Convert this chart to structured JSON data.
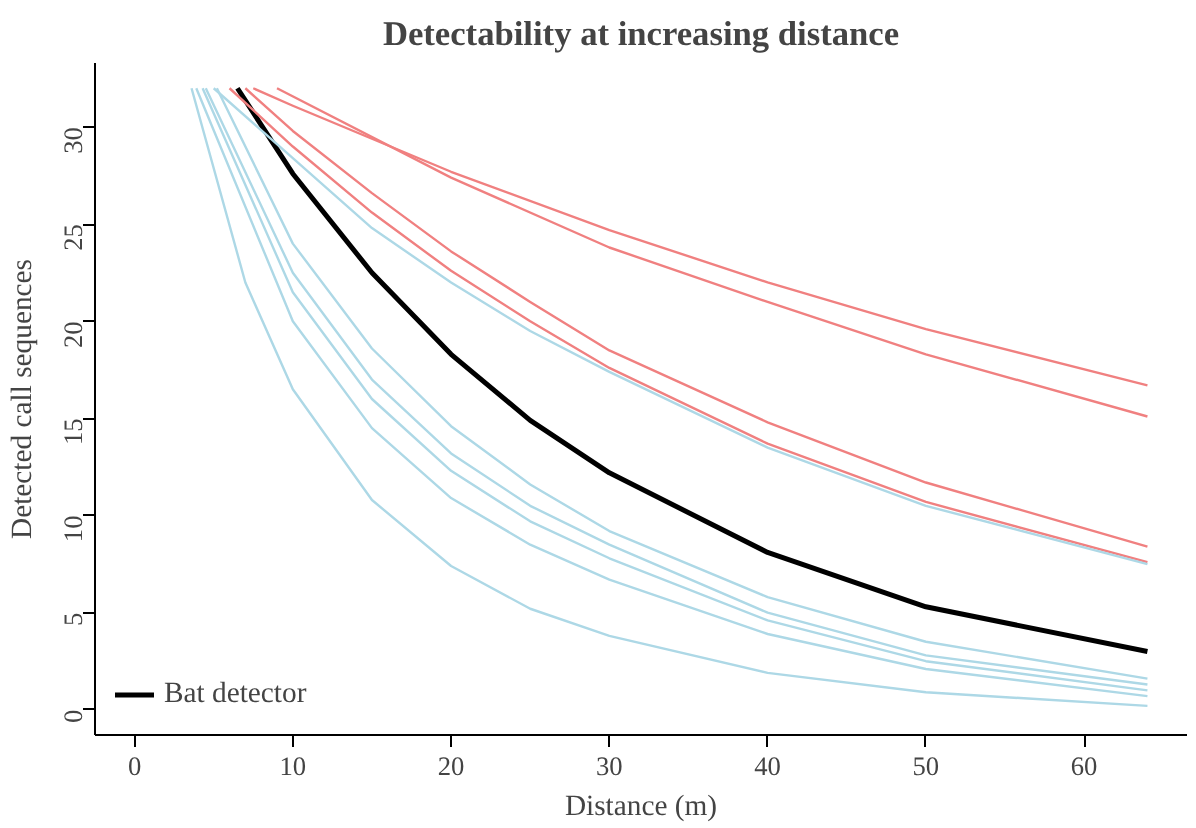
{
  "chart_data": {
    "type": "line",
    "title": "Detectability at increasing distance",
    "xlabel": "Distance (m)",
    "ylabel": "Detected call sequences",
    "xlim": [
      -2.5,
      66.5
    ],
    "ylim": [
      -1.3,
      33.3
    ],
    "xticks": [
      0,
      10,
      20,
      30,
      40,
      50,
      60
    ],
    "yticks": [
      0,
      5,
      10,
      15,
      20,
      25,
      30
    ],
    "grid": false,
    "legend": "bottom left",
    "line_style": "solid",
    "marker": "none",
    "series": [
      {
        "name": "Bat detector",
        "color": "#000000",
        "x": [
          6.5,
          10,
          15,
          20,
          25,
          30,
          40,
          50,
          64
        ],
        "values": [
          32,
          27.6,
          22.5,
          18.3,
          14.9,
          12.2,
          8.1,
          5.3,
          3.0
        ]
      },
      {
        "color": "#f08080",
        "x": [
          7.5,
          10,
          20,
          30,
          40,
          50,
          64
        ],
        "values": [
          32,
          31.1,
          27.7,
          24.7,
          22.0,
          19.6,
          16.7
        ]
      },
      {
        "color": "#f08080",
        "x": [
          9,
          20,
          30,
          40,
          50,
          64
        ],
        "values": [
          32,
          27.4,
          23.8,
          21.0,
          18.3,
          15.1
        ]
      },
      {
        "color": "#f08080",
        "x": [
          7,
          10,
          15,
          20,
          25,
          30,
          40,
          50,
          64
        ],
        "values": [
          32,
          29.8,
          26.6,
          23.6,
          21.0,
          18.5,
          14.8,
          11.7,
          8.4
        ]
      },
      {
        "color": "#f08080",
        "x": [
          6,
          10,
          15,
          20,
          25,
          30,
          40,
          50,
          64
        ],
        "values": [
          32,
          29.0,
          25.6,
          22.6,
          20.0,
          17.6,
          13.7,
          10.7,
          7.6
        ]
      },
      {
        "color": "#add8e6",
        "x": [
          5,
          10,
          15,
          20,
          25,
          30,
          40,
          50,
          64
        ],
        "values": [
          32,
          28.4,
          24.8,
          22.0,
          19.5,
          17.4,
          13.5,
          10.5,
          7.5
        ]
      },
      {
        "color": "#add8e6",
        "x": [
          5.2,
          10,
          15,
          20,
          25,
          30,
          40,
          50,
          64
        ],
        "values": [
          32,
          24.0,
          18.6,
          14.6,
          11.6,
          9.2,
          5.8,
          3.5,
          1.6
        ]
      },
      {
        "color": "#add8e6",
        "x": [
          4.5,
          10,
          15,
          20,
          25,
          30,
          40,
          50,
          64
        ],
        "values": [
          32,
          22.5,
          17.0,
          13.2,
          10.5,
          8.5,
          5.0,
          2.8,
          1.3
        ]
      },
      {
        "color": "#add8e6",
        "x": [
          4.3,
          10,
          15,
          20,
          25,
          30,
          40,
          50,
          64
        ],
        "values": [
          32,
          21.5,
          16.0,
          12.3,
          9.7,
          7.8,
          4.6,
          2.5,
          1.0
        ]
      },
      {
        "color": "#add8e6",
        "x": [
          3.9,
          10,
          15,
          20,
          25,
          30,
          40,
          50,
          64
        ],
        "values": [
          32,
          20.0,
          14.5,
          10.9,
          8.5,
          6.7,
          3.9,
          2.1,
          0.7
        ]
      },
      {
        "color": "#add8e6",
        "x": [
          3.6,
          7,
          10,
          15,
          20,
          25,
          30,
          40,
          50,
          64
        ],
        "values": [
          32,
          22.0,
          16.5,
          10.8,
          7.4,
          5.2,
          3.8,
          1.9,
          0.9,
          0.2
        ]
      }
    ]
  }
}
